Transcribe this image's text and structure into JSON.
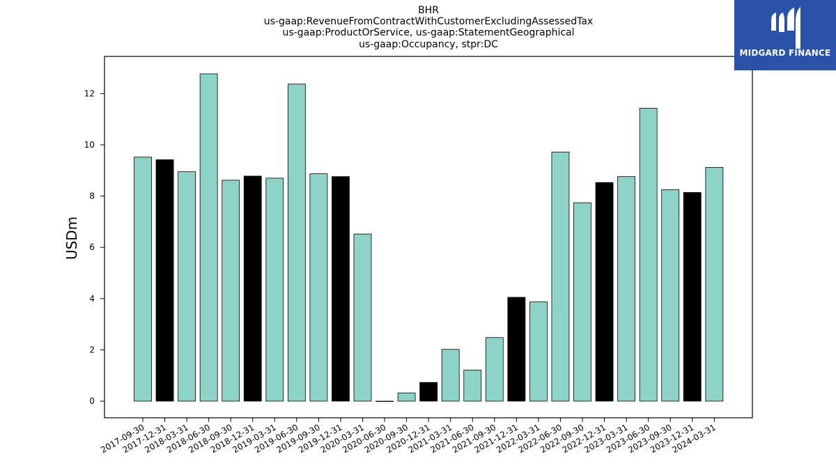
{
  "chart_data": {
    "type": "bar",
    "title_lines": [
      "BHR",
      "us-gaap:RevenueFromContractWithCustomerExcludingAssessedTax",
      "us-gaap:ProductOrService, us-gaap:StatementGeographical",
      "us-gaap:Occupancy, stpr:DC"
    ],
    "ylabel": "USDm",
    "xlabel": "",
    "ylim": [
      -0.65,
      13.45
    ],
    "yticks": [
      0,
      2,
      4,
      6,
      8,
      10,
      12
    ],
    "grid": false,
    "categories": [
      "2017-09-30",
      "2017-12-31",
      "2018-03-31",
      "2018-06-30",
      "2018-09-30",
      "2018-12-31",
      "2019-03-31",
      "2019-06-30",
      "2019-09-30",
      "2019-12-31",
      "2020-03-31",
      "2020-06-30",
      "2020-09-30",
      "2020-12-31",
      "2021-03-31",
      "2021-06-30",
      "2021-09-30",
      "2021-12-31",
      "2022-03-31",
      "2022-06-30",
      "2022-09-30",
      "2022-12-31",
      "2023-03-31",
      "2023-06-30",
      "2023-09-30",
      "2023-12-31",
      "2024-03-31"
    ],
    "values": [
      9.52,
      9.42,
      8.95,
      12.77,
      8.62,
      8.78,
      8.7,
      12.37,
      8.87,
      8.76,
      6.52,
      0.0,
      0.32,
      0.73,
      2.02,
      1.21,
      2.48,
      4.05,
      3.87,
      9.72,
      7.74,
      8.53,
      8.76,
      11.43,
      8.25,
      8.14,
      9.12
    ],
    "bar_colors": [
      "#8dd3c7",
      "#000000",
      "#8dd3c7",
      "#8dd3c7",
      "#8dd3c7",
      "#000000",
      "#8dd3c7",
      "#8dd3c7",
      "#8dd3c7",
      "#000000",
      "#8dd3c7",
      "#8dd3c7",
      "#8dd3c7",
      "#000000",
      "#8dd3c7",
      "#8dd3c7",
      "#8dd3c7",
      "#000000",
      "#8dd3c7",
      "#8dd3c7",
      "#8dd3c7",
      "#000000",
      "#8dd3c7",
      "#8dd3c7",
      "#8dd3c7",
      "#000000",
      "#8dd3c7"
    ]
  },
  "logo": {
    "text": "MIDGARD FINANCE",
    "icon": "midgard-logo-icon",
    "color": "#2a52a8"
  }
}
